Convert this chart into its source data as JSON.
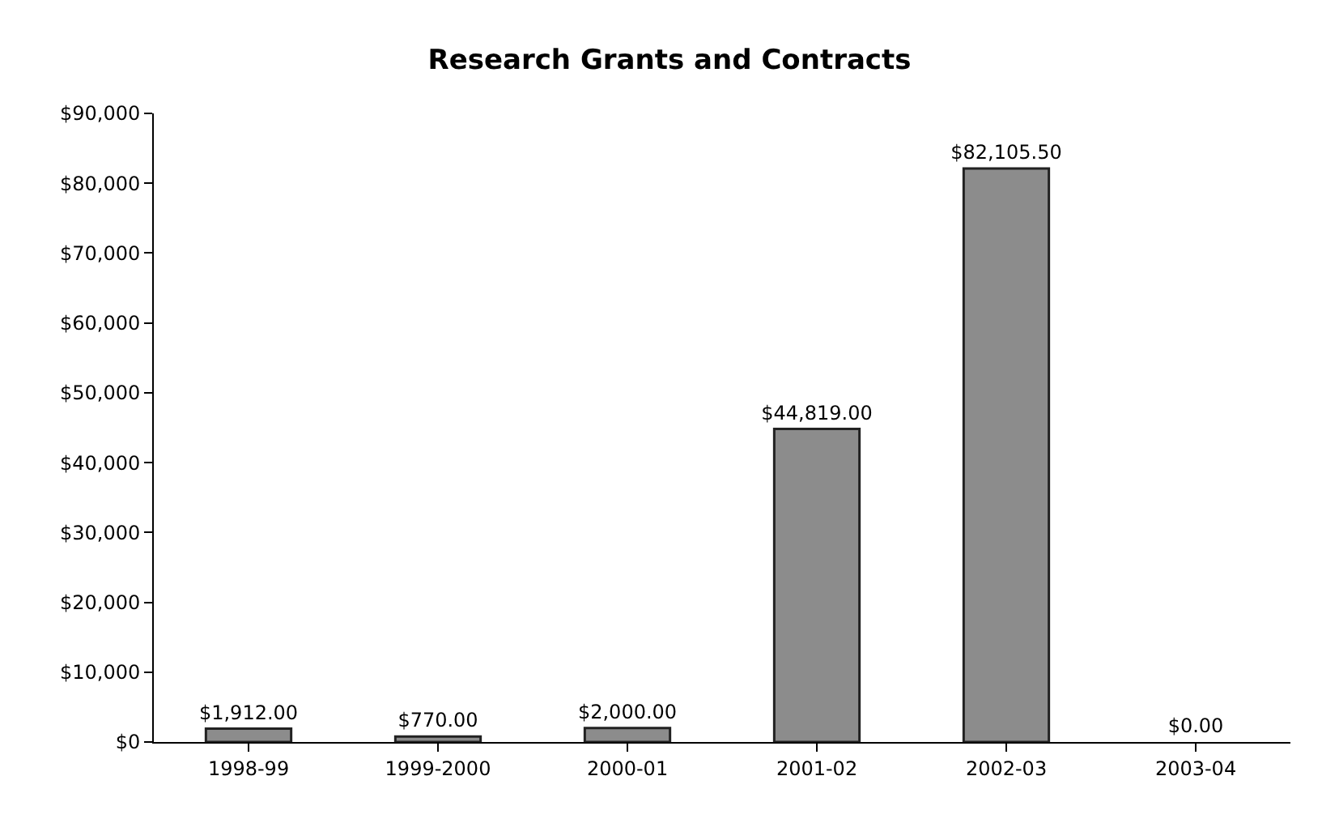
{
  "chart_data": {
    "type": "bar",
    "title": "Research Grants and Contracts",
    "categories": [
      "1998-99",
      "1999-2000",
      "2000-01",
      "2001-02",
      "2002-03",
      "2003-04"
    ],
    "values": [
      1912,
      770,
      2000,
      44819,
      82105.5,
      0
    ],
    "value_labels": [
      "$1,912.00",
      "$770.00",
      "$2,000.00",
      "$44,819.00",
      "$82,105.50",
      "$0.00"
    ],
    "color": "#8c8c8c",
    "ylim": [
      0,
      90000
    ],
    "yticks": [
      {
        "value": 0,
        "label": "$0"
      },
      {
        "value": 10000,
        "label": "$10,000"
      },
      {
        "value": 20000,
        "label": "$20,000"
      },
      {
        "value": 30000,
        "label": "$30,000"
      },
      {
        "value": 40000,
        "label": "$40,000"
      },
      {
        "value": 50000,
        "label": "$50,000"
      },
      {
        "value": 60000,
        "label": "$60,000"
      },
      {
        "value": 70000,
        "label": "$70,000"
      },
      {
        "value": 80000,
        "label": "$80,000"
      },
      {
        "value": 90000,
        "label": "$90,000"
      }
    ],
    "grid": false
  }
}
